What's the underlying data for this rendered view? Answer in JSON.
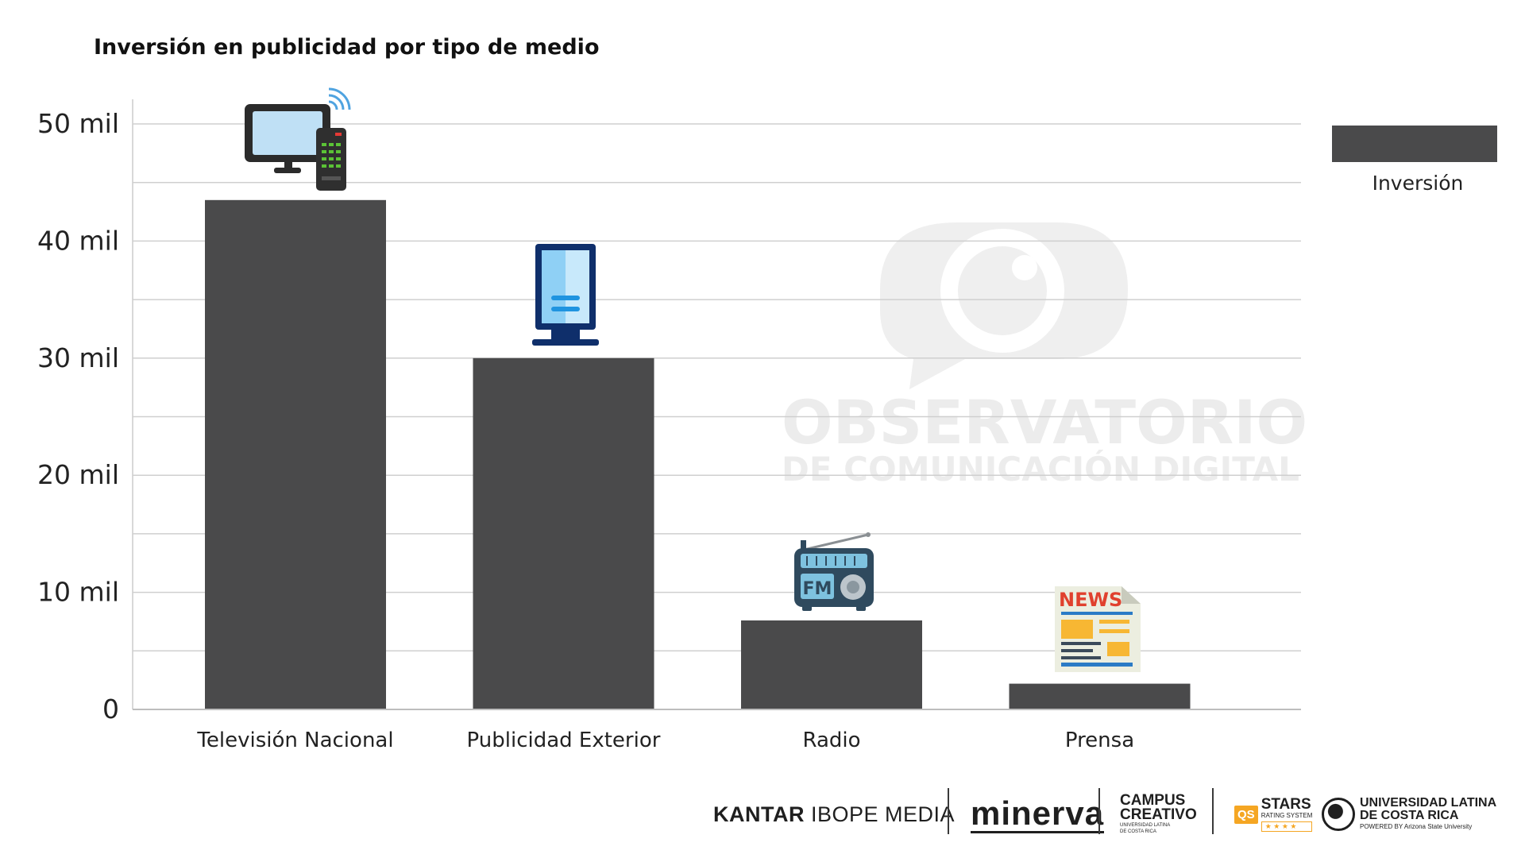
{
  "chart_data": {
    "type": "bar",
    "title": "Inversión en publicidad por tipo de medio",
    "categories": [
      "Televisión Nacional",
      "Publicidad Exterior",
      "Radio",
      "Prensa"
    ],
    "series": [
      {
        "name": "Inversión",
        "values": [
          43500,
          30000,
          7600,
          2200
        ],
        "color": "#4a4a4b"
      }
    ],
    "ylim": [
      0,
      50000
    ],
    "ytick_labels": [
      {
        "value": 0,
        "label": "0"
      },
      {
        "value": 10000,
        "label": "10 mil"
      },
      {
        "value": 20000,
        "label": "20 mil"
      },
      {
        "value": 30000,
        "label": "30 mil"
      },
      {
        "value": 40000,
        "label": "40 mil"
      },
      {
        "value": 50000,
        "label": "50 mil"
      }
    ],
    "grid_values": [
      5000,
      10000,
      15000,
      20000,
      25000,
      30000,
      35000,
      40000,
      45000,
      50000
    ],
    "grid": true,
    "legend_position": "top-right",
    "bar_icons": [
      "tv-remote-icon",
      "billboard-icon",
      "radio-icon",
      "newspaper-icon"
    ]
  },
  "watermark": {
    "line1": "OBSERVATORIO",
    "line2": "DE COMUNICACIÓN DIGITAL"
  },
  "icons": {
    "radio_text": "FM",
    "news_text": "NEWS"
  },
  "footer": {
    "kantar": "KANTAR",
    "ibope": "IBOPE MEDIA",
    "minerva": "minerva",
    "campus_line1": "CAMPUS",
    "campus_line2": "CREATIVO",
    "campus_small": "UNIVERSIDAD LATINA DE COSTA RICA",
    "qs": "QS",
    "stars": "STARS",
    "stars_sub": "RATING SYSTEM",
    "stars_rating": "★ ★ ★ ★",
    "ulatina_line1": "UNIVERSIDAD LATINA",
    "ulatina_line2": "DE COSTA RICA",
    "ulatina_sub": "POWERED BY Arizona State University"
  }
}
